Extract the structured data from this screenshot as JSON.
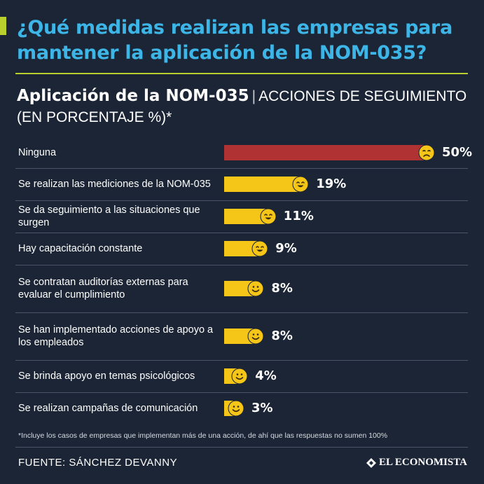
{
  "title": "¿Qué medidas realizan las empresas para mantener la aplicación de la NOM-035?",
  "subtitle": {
    "bold": "Aplicación de la NOM-035",
    "separator": "|",
    "light": "ACCIONES DE SEGUIMIENTO (EN PORCENTAJE %)*"
  },
  "colors": {
    "background": "#1b2535",
    "title": "#3db5e6",
    "accent": "#b8cf2e",
    "bar_default": "#f5c518",
    "bar_highlight": "#b03232",
    "face": "#f5c518"
  },
  "chart_data": {
    "type": "bar",
    "orientation": "horizontal",
    "categories": [
      "Ninguna",
      "Se realizan las mediciones de la NOM-035",
      "Se da seguimiento a las situaciones que surgen",
      "Hay capacitación constante",
      "Se contratan auditorías externas para evaluar el cumplimiento",
      "Se han implementado acciones de apoyo a los empleados",
      "Se brinda apoyo en temas psicológicos",
      "Se realizan campañas de comunicación"
    ],
    "values": [
      50,
      19,
      11,
      9,
      8,
      8,
      4,
      3
    ],
    "value_labels": [
      "50%",
      "19%",
      "11%",
      "9%",
      "8%",
      "8%",
      "4%",
      "3%"
    ],
    "face_icons": [
      "sad-face-icon",
      "happy-face-icon",
      "happy-face-icon",
      "happy-face-icon",
      "smile-face-icon",
      "smile-face-icon",
      "smile-face-icon",
      "smile-face-icon"
    ],
    "xlim": [
      0,
      50
    ],
    "grid": false
  },
  "footnote": "*Incluye los casos de empresas que implementan más de una acción, de ahí que las respuestas no sumen 100%",
  "source": "FUENTE: SÁNCHEZ DEVANNY",
  "brand": "EL ECONOMISTA"
}
